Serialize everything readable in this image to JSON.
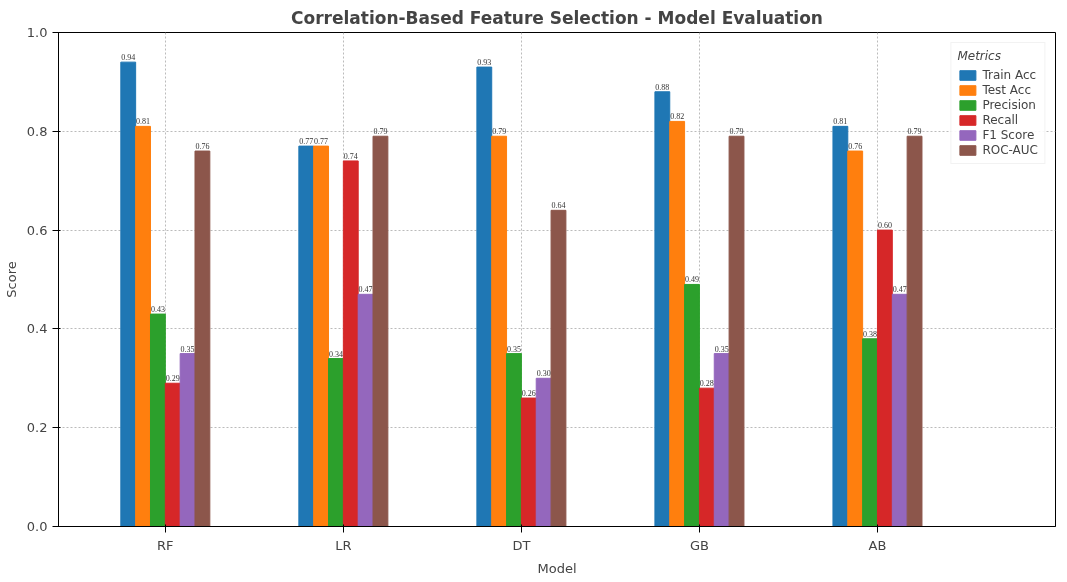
{
  "chart_data": {
    "type": "bar",
    "title": "Correlation-Based Feature Selection - Model Evaluation",
    "xlabel": "Model",
    "ylabel": "Score",
    "legend_title": "Metrics",
    "categories": [
      "RF",
      "LR",
      "DT",
      "GB",
      "AB"
    ],
    "series": [
      {
        "name": "Train Acc",
        "color": "#1f77b4",
        "values": [
          0.94,
          0.77,
          0.93,
          0.88,
          0.81
        ],
        "value_labels": [
          "0.94",
          "0.77",
          "0.93",
          "0.88",
          "0.81"
        ]
      },
      {
        "name": "Test Acc",
        "color": "#ff7f0e",
        "values": [
          0.81,
          0.77,
          0.79,
          0.82,
          0.76
        ],
        "value_labels": [
          "0.81",
          "0.77",
          "0.79",
          "0.82",
          "0.76"
        ]
      },
      {
        "name": "Precision",
        "color": "#2ca02c",
        "values": [
          0.43,
          0.34,
          0.35,
          0.49,
          0.38
        ],
        "value_labels": [
          "0.43",
          "0.34",
          "0.35",
          "0.49",
          "0.38"
        ]
      },
      {
        "name": "Recall",
        "color": "#d62728",
        "values": [
          0.29,
          0.74,
          0.26,
          0.28,
          0.6
        ],
        "value_labels": [
          "0.29",
          "0.74",
          "0.26",
          "0.28",
          "0.60"
        ]
      },
      {
        "name": "F1 Score",
        "color": "#9467bd",
        "values": [
          0.35,
          0.47,
          0.3,
          0.35,
          0.47
        ],
        "value_labels": [
          "0.35",
          "0.47",
          "0.30",
          "0.35",
          "0.47"
        ]
      },
      {
        "name": "ROC-AUC",
        "color": "#8c564b",
        "values": [
          0.76,
          0.79,
          0.64,
          0.79,
          0.79
        ],
        "value_labels": [
          "0.76",
          "0.79",
          "0.64",
          "0.79",
          "0.79"
        ]
      }
    ],
    "ylim": [
      0,
      1
    ],
    "yticks": [
      {
        "value": 0,
        "label": "0.0"
      },
      {
        "value": 0.2,
        "label": "0.2"
      },
      {
        "value": 0.4,
        "label": "0.4"
      },
      {
        "value": 0.6,
        "label": "0.6"
      },
      {
        "value": 0.8,
        "label": "0.8"
      },
      {
        "value": 1,
        "label": "1.0"
      }
    ],
    "grid": true,
    "legend": "top right"
  }
}
